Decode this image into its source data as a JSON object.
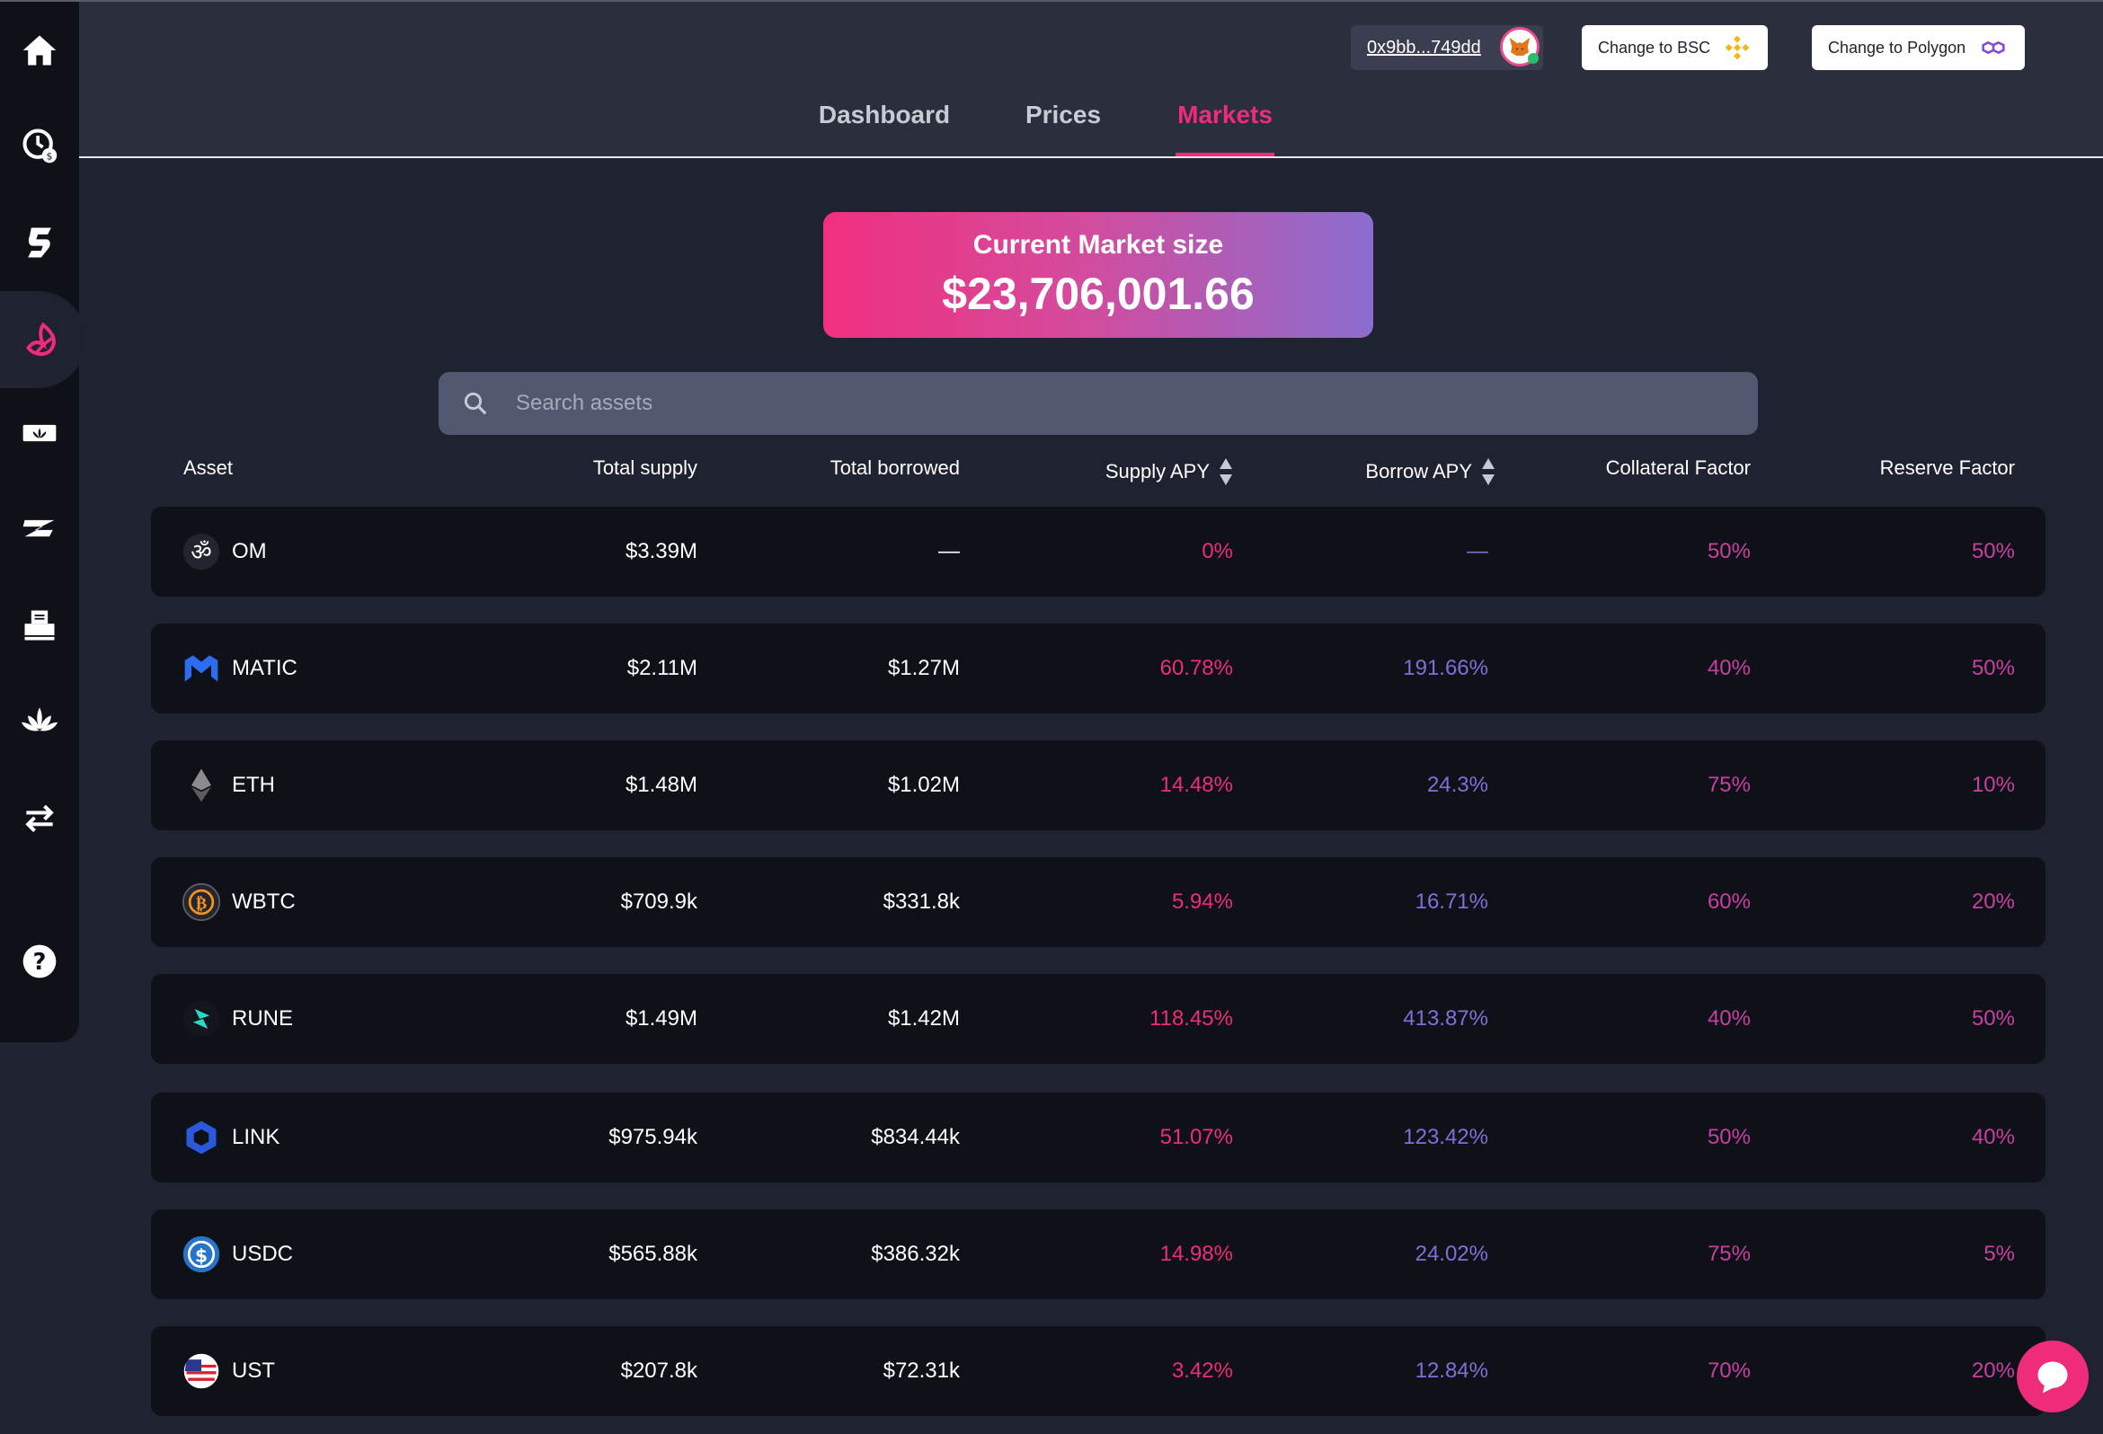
{
  "header": {
    "wallet_address": "0x9bb...749dd",
    "bsc_button": "Change to BSC",
    "polygon_button": "Change to Polygon"
  },
  "tabs": [
    {
      "label": "Dashboard"
    },
    {
      "label": "Prices"
    },
    {
      "label": "Markets"
    }
  ],
  "market": {
    "label": "Current Market size",
    "value": "$23,706,001.66"
  },
  "search": {
    "placeholder": "Search assets"
  },
  "columns": {
    "asset": "Asset",
    "total_supply": "Total supply",
    "total_borrowed": "Total borrowed",
    "supply_apy": "Supply APY",
    "borrow_apy": "Borrow APY",
    "collateral_factor": "Collateral Factor",
    "reserve_factor": "Reserve Factor"
  },
  "rows": [
    {
      "asset": "OM",
      "total_supply": "$3.39M",
      "total_borrowed": "—",
      "supply_apy": "0%",
      "borrow_apy": "—",
      "collateral_factor": "50%",
      "reserve_factor": "50%"
    },
    {
      "asset": "MATIC",
      "total_supply": "$2.11M",
      "total_borrowed": "$1.27M",
      "supply_apy": "60.78%",
      "borrow_apy": "191.66%",
      "collateral_factor": "40%",
      "reserve_factor": "50%"
    },
    {
      "asset": "ETH",
      "total_supply": "$1.48M",
      "total_borrowed": "$1.02M",
      "supply_apy": "14.48%",
      "borrow_apy": "24.3%",
      "collateral_factor": "75%",
      "reserve_factor": "10%"
    },
    {
      "asset": "WBTC",
      "total_supply": "$709.9k",
      "total_borrowed": "$331.8k",
      "supply_apy": "5.94%",
      "borrow_apy": "16.71%",
      "collateral_factor": "60%",
      "reserve_factor": "20%"
    },
    {
      "asset": "RUNE",
      "total_supply": "$1.49M",
      "total_borrowed": "$1.42M",
      "supply_apy": "118.45%",
      "borrow_apy": "413.87%",
      "collateral_factor": "40%",
      "reserve_factor": "50%"
    },
    {
      "asset": "LINK",
      "total_supply": "$975.94k",
      "total_borrowed": "$834.44k",
      "supply_apy": "51.07%",
      "borrow_apy": "123.42%",
      "collateral_factor": "50%",
      "reserve_factor": "40%"
    },
    {
      "asset": "USDC",
      "total_supply": "$565.88k",
      "total_borrowed": "$386.32k",
      "supply_apy": "14.98%",
      "borrow_apy": "24.02%",
      "collateral_factor": "75%",
      "reserve_factor": "5%"
    },
    {
      "asset": "UST",
      "total_supply": "$207.8k",
      "total_borrowed": "$72.31k",
      "supply_apy": "3.42%",
      "borrow_apy": "12.84%",
      "collateral_factor": "70%",
      "reserve_factor": "20%"
    }
  ],
  "icons": {
    "sidebar": [
      "home-icon",
      "clock-dollar-icon",
      "swirl-logo-icon",
      "lend-leaf-icon",
      "lotus-ticket-icon",
      "z-logo-icon",
      "printer-icon",
      "lotus-icon",
      "swap-arrows-icon",
      "help-icon"
    ],
    "chat": "chat-icon"
  },
  "colors": {
    "accent": "#ee2c7a",
    "borrow": "#7f6fd8",
    "factor": "#c8409f"
  }
}
